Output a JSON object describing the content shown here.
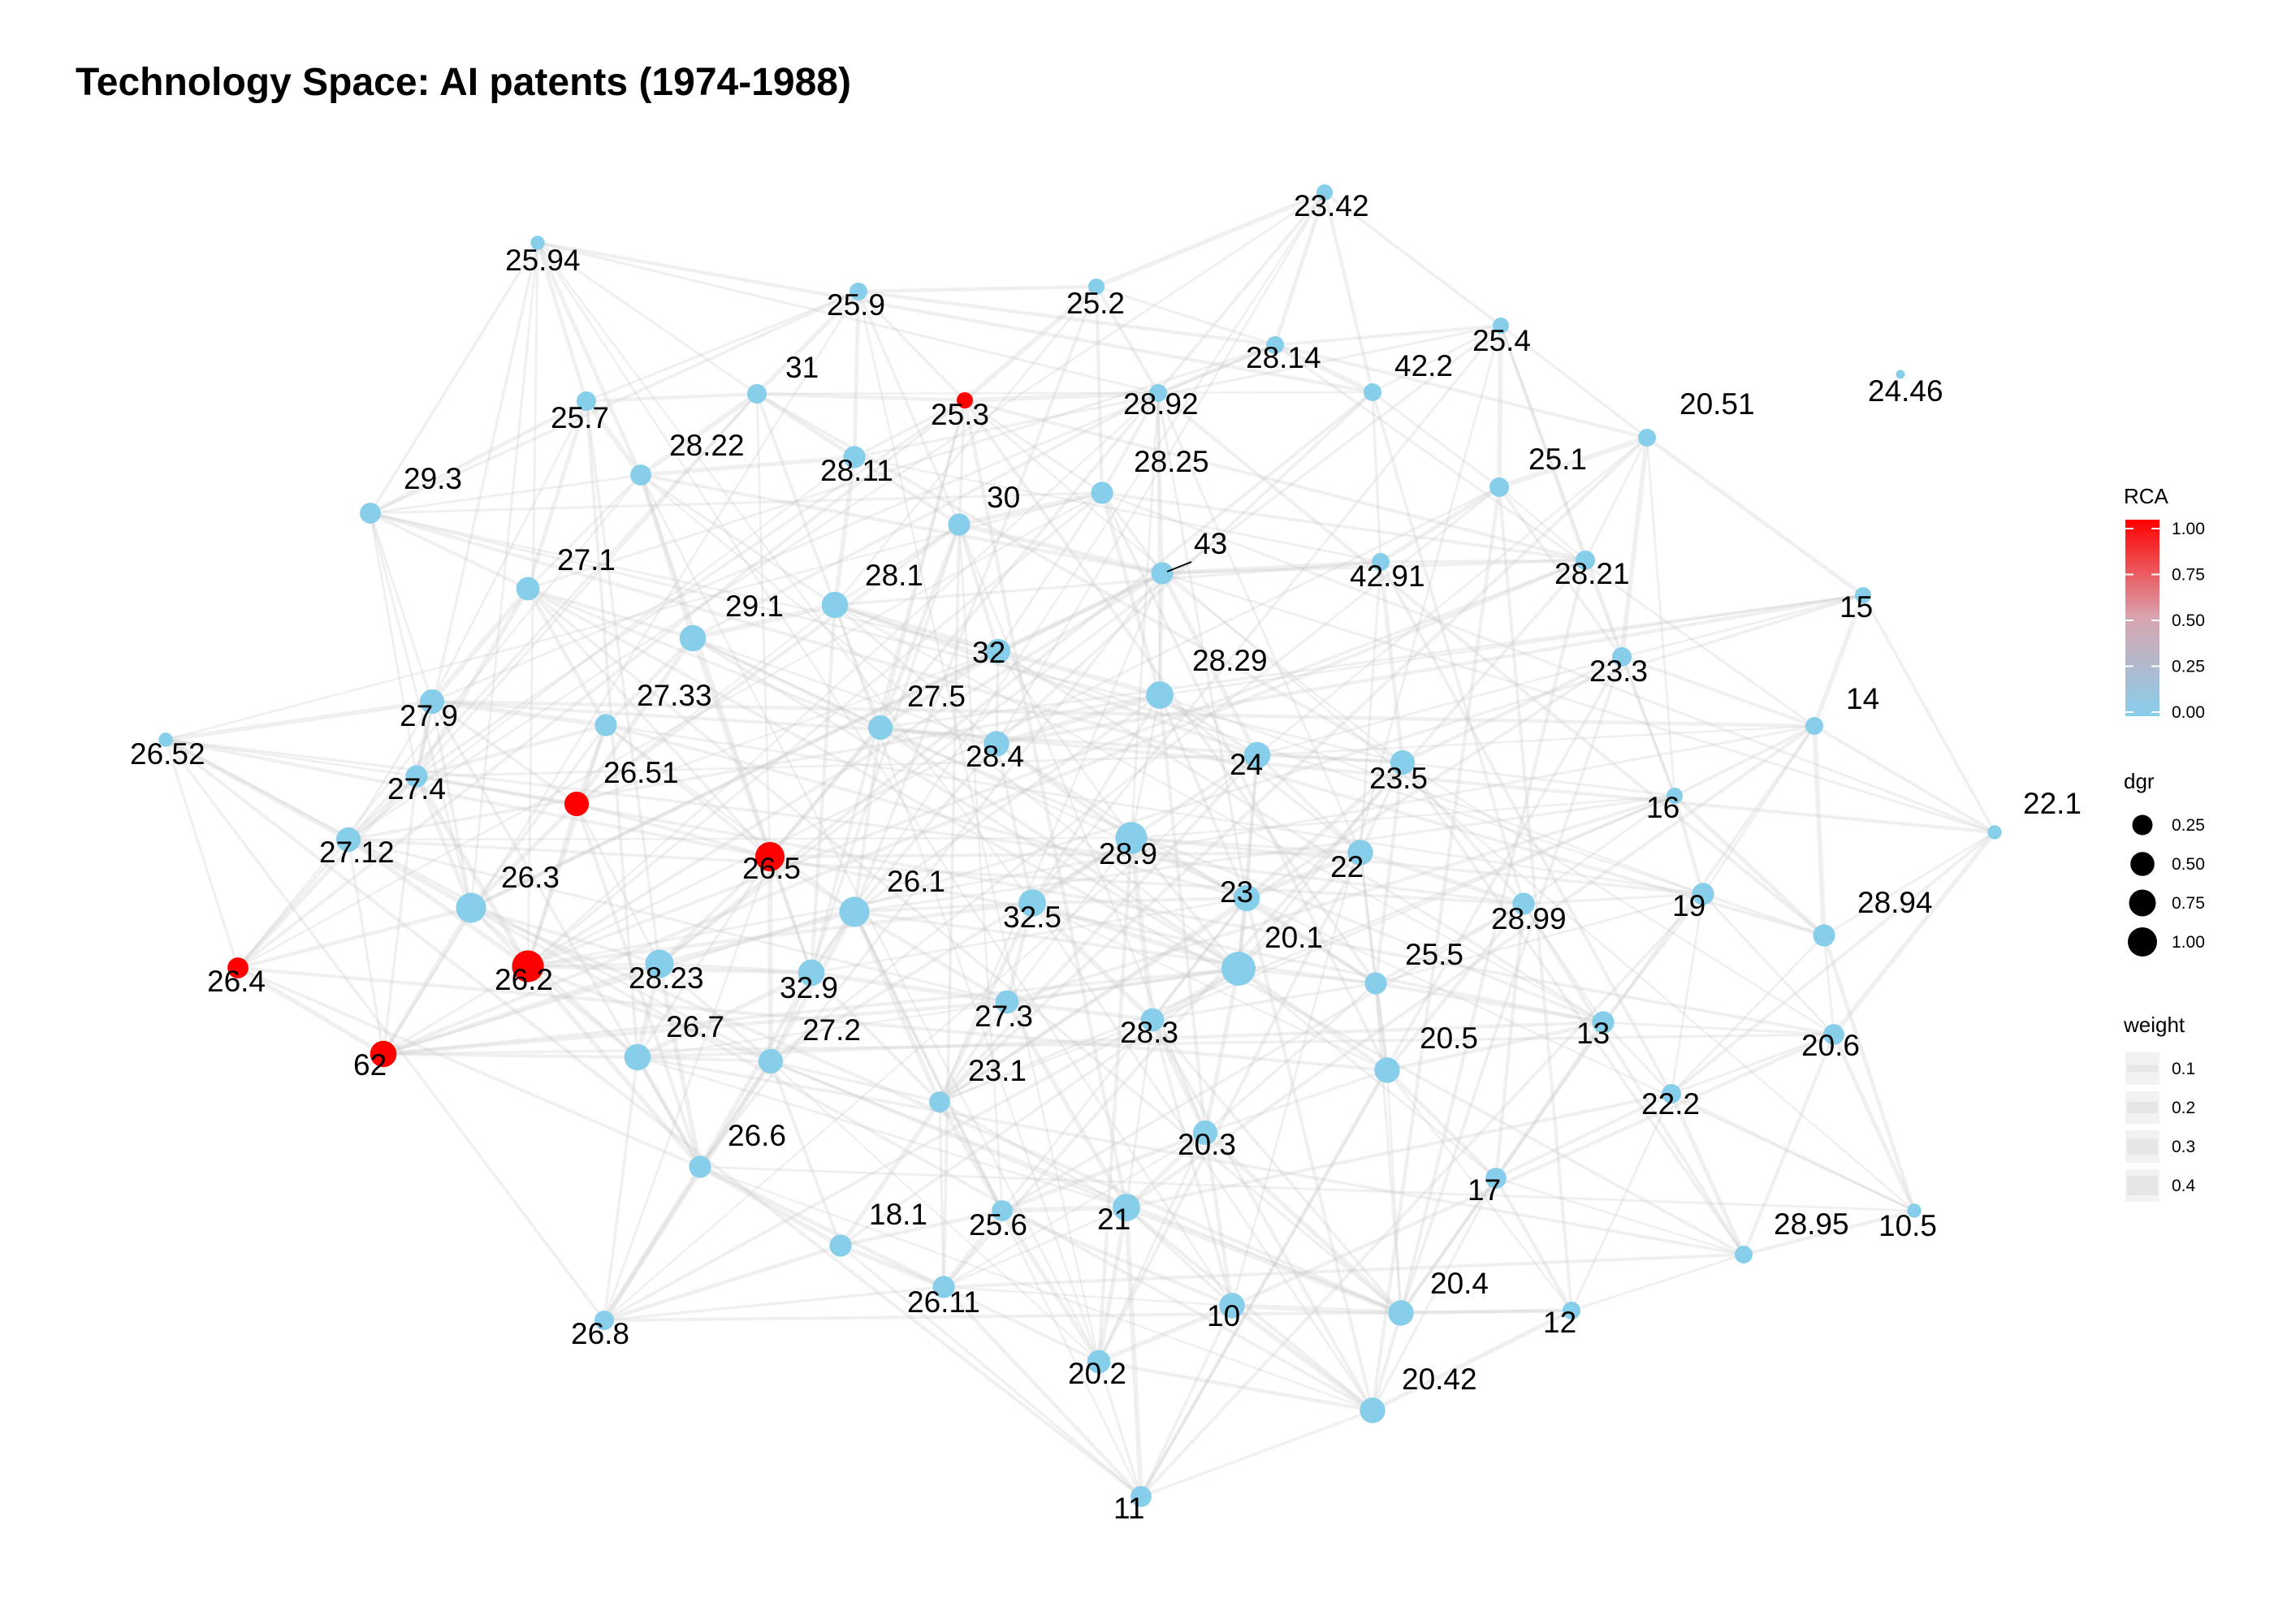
{
  "title": "Technology Space: AI patents (1974-1988)",
  "colors": {
    "low": "#87CEEB",
    "high": "#FF0000",
    "edge": "#C8C8C8"
  },
  "legend": {
    "rca": {
      "title": "RCA",
      "ticks": [
        "1.00",
        "0.75",
        "0.50",
        "0.25",
        "0.00"
      ]
    },
    "dgr": {
      "title": "dgr",
      "items": [
        {
          "label": "0.25",
          "value": 0.25
        },
        {
          "label": "0.50",
          "value": 0.5
        },
        {
          "label": "0.75",
          "value": 0.75
        },
        {
          "label": "1.00",
          "value": 1.0
        }
      ]
    },
    "weight": {
      "title": "weight",
      "items": [
        {
          "label": "0.1",
          "value": 0.1
        },
        {
          "label": "0.2",
          "value": 0.2
        },
        {
          "label": "0.3",
          "value": 0.3
        },
        {
          "label": "0.4",
          "value": 0.4
        }
      ]
    }
  },
  "nodes": [
    {
      "label": "25.94",
      "rca": 0,
      "dgr": 0.1
    },
    {
      "label": "23.42",
      "rca": 0,
      "dgr": 0.15
    },
    {
      "label": "25.9",
      "rca": 0,
      "dgr": 0.2
    },
    {
      "label": "25.2",
      "rca": 0,
      "dgr": 0.15
    },
    {
      "label": "28.14",
      "rca": 0,
      "dgr": 0.2
    },
    {
      "label": "25.4",
      "rca": 0,
      "dgr": 0.15
    },
    {
      "label": "42.2",
      "rca": 0,
      "dgr": 0.2
    },
    {
      "label": "31",
      "rca": 0,
      "dgr": 0.25
    },
    {
      "label": "25.3",
      "rca": 1,
      "dgr": 0.15
    },
    {
      "label": "25.7",
      "rca": 0,
      "dgr": 0.25
    },
    {
      "label": "28.92",
      "rca": 0,
      "dgr": 0.2
    },
    {
      "label": "24.46",
      "rca": 0,
      "dgr": 0.02
    },
    {
      "label": "20.51",
      "rca": 0,
      "dgr": 0.2
    },
    {
      "label": "28.22",
      "rca": 0,
      "dgr": 0.3
    },
    {
      "label": "28.11",
      "rca": 0,
      "dgr": 0.35
    },
    {
      "label": "28.25",
      "rca": 0,
      "dgr": 0.35
    },
    {
      "label": "25.1",
      "rca": 0,
      "dgr": 0.25
    },
    {
      "label": "29.3",
      "rca": 0,
      "dgr": 0.3
    },
    {
      "label": "30",
      "rca": 0,
      "dgr": 0.35
    },
    {
      "label": "43",
      "rca": 0,
      "dgr": 0.35
    },
    {
      "label": "27.1",
      "rca": 0,
      "dgr": 0.4
    },
    {
      "label": "42.91",
      "rca": 0,
      "dgr": 0.2
    },
    {
      "label": "28.21",
      "rca": 0,
      "dgr": 0.25
    },
    {
      "label": "28.1",
      "rca": 0,
      "dgr": 0.55
    },
    {
      "label": "29.1",
      "rca": 0,
      "dgr": 0.55
    },
    {
      "label": "15",
      "rca": 0,
      "dgr": 0.15
    },
    {
      "label": "32",
      "rca": 0,
      "dgr": 0.45
    },
    {
      "label": "23.3",
      "rca": 0,
      "dgr": 0.25
    },
    {
      "label": "28.29",
      "rca": 0,
      "dgr": 0.6
    },
    {
      "label": "14",
      "rca": 0,
      "dgr": 0.2
    },
    {
      "label": "27.9",
      "rca": 0,
      "dgr": 0.45
    },
    {
      "label": "27.33",
      "rca": 0,
      "dgr": 0.35
    },
    {
      "label": "27.5",
      "rca": 0,
      "dgr": 0.45
    },
    {
      "label": "26.52",
      "rca": 0,
      "dgr": 0.1
    },
    {
      "label": "28.4",
      "rca": 0,
      "dgr": 0.5
    },
    {
      "label": "24",
      "rca": 0,
      "dgr": 0.55
    },
    {
      "label": "23.5",
      "rca": 0,
      "dgr": 0.45
    },
    {
      "label": "27.4",
      "rca": 0,
      "dgr": 0.35
    },
    {
      "label": "26.51",
      "rca": 1,
      "dgr": 0.45
    },
    {
      "label": "16",
      "rca": 0,
      "dgr": 0.15
    },
    {
      "label": "22.1",
      "rca": 0,
      "dgr": 0.1
    },
    {
      "label": "27.12",
      "rca": 0,
      "dgr": 0.45
    },
    {
      "label": "26.5",
      "rca": 1,
      "dgr": 0.7
    },
    {
      "label": "28.9",
      "rca": 0,
      "dgr": 0.85
    },
    {
      "label": "22",
      "rca": 0,
      "dgr": 0.5
    },
    {
      "label": "26.3",
      "rca": 0,
      "dgr": 0.75
    },
    {
      "label": "26.1",
      "rca": 0,
      "dgr": 0.75
    },
    {
      "label": "19",
      "rca": 0,
      "dgr": 0.35
    },
    {
      "label": "28.99",
      "rca": 0,
      "dgr": 0.35
    },
    {
      "label": "23",
      "rca": 0,
      "dgr": 0.55
    },
    {
      "label": "32.5",
      "rca": 0,
      "dgr": 0.6
    },
    {
      "label": "28.94",
      "rca": 0,
      "dgr": 0.35
    },
    {
      "label": "26.4",
      "rca": 1,
      "dgr": 0.3
    },
    {
      "label": "26.2",
      "rca": 1,
      "dgr": 0.85
    },
    {
      "label": "28.23",
      "rca": 0,
      "dgr": 0.65
    },
    {
      "label": "32.9",
      "rca": 0,
      "dgr": 0.55
    },
    {
      "label": "20.1",
      "rca": 0,
      "dgr": 1.0
    },
    {
      "label": "25.5",
      "rca": 0,
      "dgr": 0.35
    },
    {
      "label": "27.3",
      "rca": 0,
      "dgr": 0.4
    },
    {
      "label": "28.3",
      "rca": 0,
      "dgr": 0.4
    },
    {
      "label": "13",
      "rca": 0,
      "dgr": 0.35
    },
    {
      "label": "62",
      "rca": 1,
      "dgr": 0.55
    },
    {
      "label": "26.7",
      "rca": 0,
      "dgr": 0.55
    },
    {
      "label": "27.2",
      "rca": 0,
      "dgr": 0.45
    },
    {
      "label": "20.5",
      "rca": 0,
      "dgr": 0.5
    },
    {
      "label": "20.6",
      "rca": 0,
      "dgr": 0.3
    },
    {
      "label": "23.1",
      "rca": 0,
      "dgr": 0.3
    },
    {
      "label": "22.2",
      "rca": 0,
      "dgr": 0.25
    },
    {
      "label": "26.6",
      "rca": 0,
      "dgr": 0.35
    },
    {
      "label": "20.3",
      "rca": 0,
      "dgr": 0.45
    },
    {
      "label": "17",
      "rca": 0,
      "dgr": 0.3
    },
    {
      "label": "18.1",
      "rca": 0,
      "dgr": 0.35
    },
    {
      "label": "21",
      "rca": 0,
      "dgr": 0.6
    },
    {
      "label": "25.6",
      "rca": 0,
      "dgr": 0.3
    },
    {
      "label": "28.95",
      "rca": 0,
      "dgr": 0.2
    },
    {
      "label": "10.5",
      "rca": 0,
      "dgr": 0.1
    },
    {
      "label": "26.11",
      "rca": 0,
      "dgr": 0.35
    },
    {
      "label": "20.4",
      "rca": 0,
      "dgr": 0.5
    },
    {
      "label": "12",
      "rca": 0,
      "dgr": 0.2
    },
    {
      "label": "26.8",
      "rca": 0,
      "dgr": 0.25
    },
    {
      "label": "10",
      "rca": 0,
      "dgr": 0.5
    },
    {
      "label": "20.2",
      "rca": 0,
      "dgr": 0.4
    },
    {
      "label": "20.42",
      "rca": 0,
      "dgr": 0.5
    },
    {
      "label": "11",
      "rca": 0,
      "dgr": 0.3
    }
  ]
}
